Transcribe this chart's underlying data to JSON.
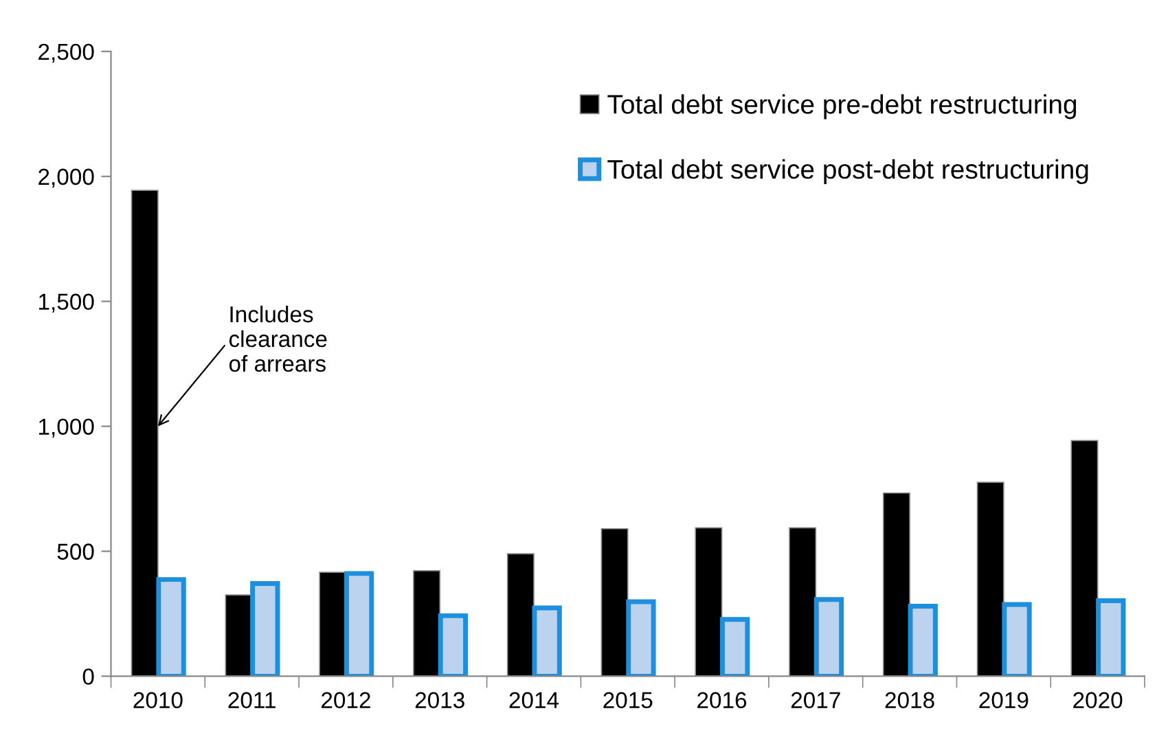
{
  "chart_data": {
    "type": "bar",
    "categories": [
      "2010",
      "2011",
      "2012",
      "2013",
      "2014",
      "2015",
      "2016",
      "2017",
      "2018",
      "2019",
      "2020"
    ],
    "series": [
      {
        "name": "Total debt service pre-debt restructuring",
        "color": "#000000",
        "values": [
          1944,
          325,
          416,
          422,
          490,
          590,
          594,
          594,
          733,
          776,
          943
        ]
      },
      {
        "name": "Total debt service post-debt restructuring",
        "color": "#1e8fdc",
        "values": [
          387,
          371,
          411,
          242,
          273,
          298,
          227,
          307,
          280,
          287,
          302
        ]
      }
    ],
    "ylim": [
      0,
      2500
    ],
    "yticks": [
      0,
      {
        "value": 500,
        "label": "500"
      },
      {
        "value": 1000,
        "label": "1,000"
      },
      {
        "value": 1500,
        "label": "1,500"
      },
      {
        "value": 2000,
        "label": "2,000"
      },
      {
        "value": 2500,
        "label": "2,500"
      }
    ],
    "grid": false,
    "legend": "top right",
    "annotations": [
      {
        "text": "Includes\nclearance\nof arrears",
        "x": "2010",
        "y": 1000
      }
    ]
  }
}
